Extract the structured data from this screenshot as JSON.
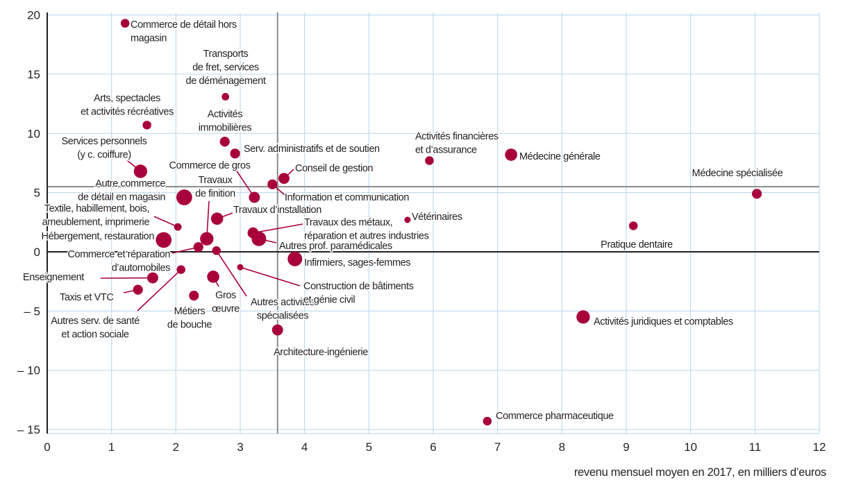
{
  "chart_data": {
    "type": "scatter",
    "title": "",
    "xlabel": "revenu mensuel moyen en 2017, en milliers d’euros",
    "ylabel": "",
    "xlim": [
      0,
      12
    ],
    "ylim": [
      -15.5,
      20.2
    ],
    "x_ticks": [
      "0",
      "1",
      "2",
      "3",
      "4",
      "5",
      "6",
      "7",
      "8",
      "9",
      "10",
      "11",
      "12"
    ],
    "y_ticks": [
      {
        "value": 20,
        "label": "20"
      },
      {
        "value": 15,
        "label": "15"
      },
      {
        "value": 10,
        "label": "10"
      },
      {
        "value": 5,
        "label": "5"
      },
      {
        "value": 0,
        "label": "0"
      },
      {
        "value": -5,
        "label": "– 5"
      },
      {
        "value": -10,
        "label": "– 10"
      },
      {
        "value": -15,
        "label": "– 15"
      }
    ],
    "grid": true,
    "reference_lines": {
      "x": 3.58,
      "y": 5.5
    },
    "colors": {
      "points": "#a8003b",
      "grid": "#bfdcec",
      "reference": "#8a8a8a",
      "axis": "#231f20"
    },
    "points": [
      {
        "label": [
          "Commerce de détail hors",
          "magasin"
        ],
        "x": 1.21,
        "y": 19.3,
        "size": 5
      },
      {
        "label": [
          "Transports",
          "de fret, services",
          "de déménagement"
        ],
        "x": 2.77,
        "y": 13.1,
        "size": 4
      },
      {
        "label": [
          "Arts, spectacles",
          "et activités récréatives"
        ],
        "x": 1.55,
        "y": 10.7,
        "size": 5
      },
      {
        "label": [
          "Activités",
          "immobilières"
        ],
        "x": 2.76,
        "y": 9.3,
        "size": 6
      },
      {
        "label": [
          "Serv. administratifs et de soutien"
        ],
        "x": 2.92,
        "y": 8.3,
        "size": 6
      },
      {
        "label": [
          "Services personnels",
          "(y c. coiffure)"
        ],
        "x": 1.45,
        "y": 6.8,
        "size": 9
      },
      {
        "label": [
          "Commerce de gros"
        ],
        "x": 3.22,
        "y": 4.6,
        "size": 7
      },
      {
        "label": [
          "Conseil de gestion"
        ],
        "x": 3.68,
        "y": 6.2,
        "size": 7
      },
      {
        "label": [
          "Information et communication"
        ],
        "x": 3.5,
        "y": 5.7,
        "size": 6
      },
      {
        "label": [
          "Activités financières",
          "et d’assurance"
        ],
        "x": 5.94,
        "y": 7.7,
        "size": 5
      },
      {
        "label": [
          "Médecine générale"
        ],
        "x": 7.21,
        "y": 8.2,
        "size": 8
      },
      {
        "label": [
          "Médecine spécialisée"
        ],
        "x": 11.03,
        "y": 4.9,
        "size": 6
      },
      {
        "label": [
          "Autre commerce",
          "de détail en magasin"
        ],
        "x": 2.13,
        "y": 4.6,
        "size": 11
      },
      {
        "label": [
          "Textile, habillement, bois,",
          "ameublement, imprimerie"
        ],
        "x": 2.03,
        "y": 2.1,
        "size": 4
      },
      {
        "label": [
          "Travaux d’installation"
        ],
        "x": 2.64,
        "y": 2.8,
        "size": 8
      },
      {
        "label": [
          "Travaux",
          "de finition"
        ],
        "x": 2.48,
        "y": 1.1,
        "size": 9
      },
      {
        "label": [
          "Hébergement, restauration"
        ],
        "x": 1.81,
        "y": 1.0,
        "size": 11
      },
      {
        "label": [
          "Commerce et réparation",
          "d’automobiles"
        ],
        "x": 2.35,
        "y": 0.4,
        "size": 6
      },
      {
        "label": [
          "Travaux des métaux,",
          "réparation et autres industries"
        ],
        "x": 3.2,
        "y": 1.6,
        "size": 7
      },
      {
        "label": [
          "Autres prof. paramédicales"
        ],
        "x": 3.29,
        "y": 1.1,
        "size": 10
      },
      {
        "label": [
          "Vétérinaires"
        ],
        "x": 5.6,
        "y": 2.7,
        "size": 3
      },
      {
        "label": [
          "Pratique dentaire"
        ],
        "x": 9.11,
        "y": 2.2,
        "size": 5
      },
      {
        "label": [
          "Autres activités",
          "spécialisées"
        ],
        "x": 2.63,
        "y": 0.1,
        "size": 5
      },
      {
        "label": [
          "Infirmiers, sages-femmes"
        ],
        "x": 3.85,
        "y": -0.6,
        "size": 10
      },
      {
        "label": [
          "Construction de bâtiments",
          "et génie civil"
        ],
        "x": 3.0,
        "y": -1.3,
        "size": 3
      },
      {
        "label": [
          "Autres serv. de santé",
          "et action sociale"
        ],
        "x": 2.08,
        "y": -1.5,
        "size": 5
      },
      {
        "label": [
          "Enseignement"
        ],
        "x": 1.64,
        "y": -2.2,
        "size": 7
      },
      {
        "label": [
          "Gros",
          "œuvre"
        ],
        "x": 2.58,
        "y": -2.1,
        "size": 8
      },
      {
        "label": [
          "Taxis et VTC"
        ],
        "x": 1.41,
        "y": -3.2,
        "size": 6
      },
      {
        "label": [
          "Métiers",
          "de bouche"
        ],
        "x": 2.28,
        "y": -3.7,
        "size": 6
      },
      {
        "label": [
          "Architecture-ingénierie"
        ],
        "x": 3.58,
        "y": -6.6,
        "size": 7
      },
      {
        "label": [
          "Activités juridiques et comptables"
        ],
        "x": 8.33,
        "y": -5.5,
        "size": 9
      },
      {
        "label": [
          "Commerce pharmaceutique"
        ],
        "x": 6.84,
        "y": -14.3,
        "size": 5
      }
    ]
  }
}
